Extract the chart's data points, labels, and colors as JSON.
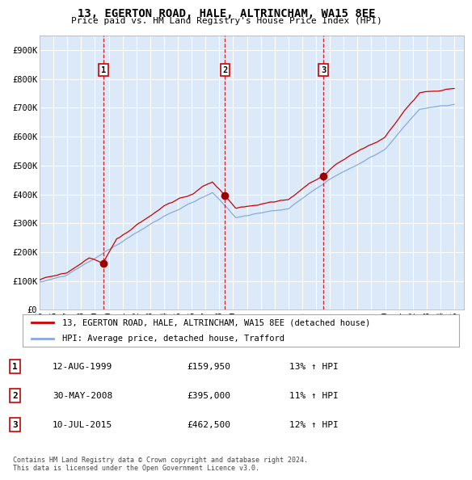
{
  "title": "13, EGERTON ROAD, HALE, ALTRINCHAM, WA15 8EE",
  "subtitle": "Price paid vs. HM Land Registry's House Price Index (HPI)",
  "xlim_start": 1995.0,
  "xlim_end": 2025.7,
  "ylim": [
    0,
    950000
  ],
  "yticks": [
    0,
    100000,
    200000,
    300000,
    400000,
    500000,
    600000,
    700000,
    800000,
    900000
  ],
  "ytick_labels": [
    "£0",
    "£100K",
    "£200K",
    "£300K",
    "£400K",
    "£500K",
    "£600K",
    "£700K",
    "£800K",
    "£900K"
  ],
  "background_color": "#dce9f8",
  "grid_color": "#ffffff",
  "red_line_color": "#cc0000",
  "blue_line_color": "#88aadd",
  "sale_marker_color": "#990000",
  "sale_dates": [
    1999.62,
    2008.41,
    2015.53
  ],
  "sale_prices": [
    159950,
    395000,
    462500
  ],
  "sale_labels": [
    "1",
    "2",
    "3"
  ],
  "vline_color": "#cc0000",
  "legend_red_label": "13, EGERTON ROAD, HALE, ALTRINCHAM, WA15 8EE (detached house)",
  "legend_blue_label": "HPI: Average price, detached house, Trafford",
  "table_rows": [
    [
      "1",
      "12-AUG-1999",
      "£159,950",
      "13% ↑ HPI"
    ],
    [
      "2",
      "30-MAY-2008",
      "£395,000",
      "11% ↑ HPI"
    ],
    [
      "3",
      "10-JUL-2015",
      "£462,500",
      "12% ↑ HPI"
    ]
  ],
  "footer": "Contains HM Land Registry data © Crown copyright and database right 2024.\nThis data is licensed under the Open Government Licence v3.0.",
  "xtick_years": [
    1995,
    1996,
    1997,
    1998,
    1999,
    2000,
    2001,
    2002,
    2003,
    2004,
    2005,
    2006,
    2007,
    2008,
    2009,
    2010,
    2011,
    2012,
    2013,
    2014,
    2015,
    2016,
    2017,
    2018,
    2019,
    2020,
    2021,
    2022,
    2023,
    2024,
    2025
  ]
}
